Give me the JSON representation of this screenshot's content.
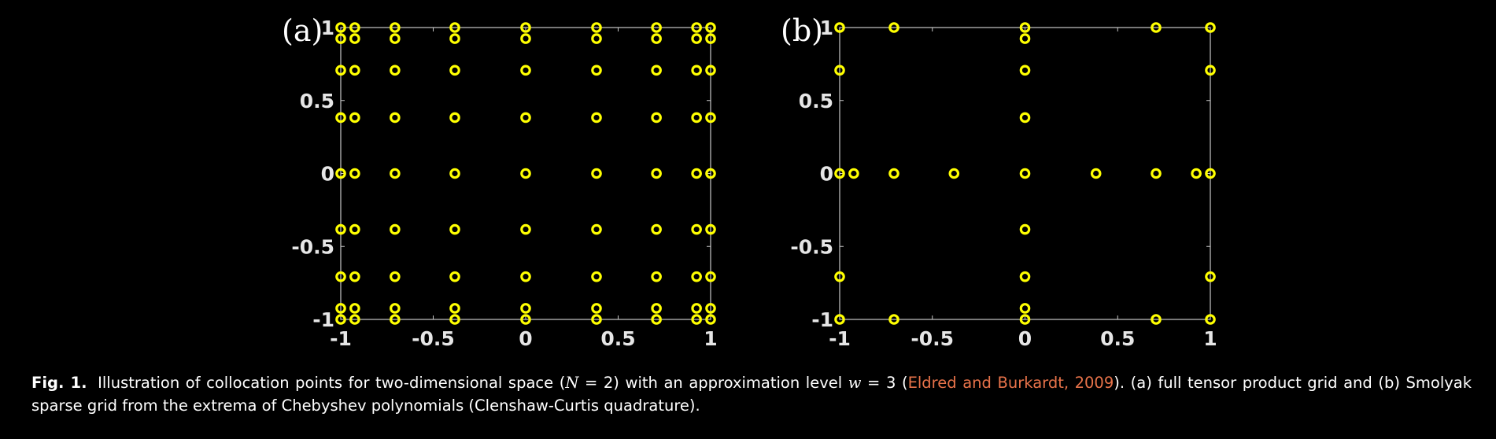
{
  "figure": {
    "caption": {
      "label": "Fig. 1.",
      "text_1": "Illustration of collocation points for two-dimensional space (",
      "var_N": "N",
      "text_2": " = 2) with an approximation level ",
      "var_w": "w",
      "text_3": " = 3 (",
      "citation": "Eldred and Burkardt, 2009",
      "text_4": "). (a) full tensor product grid and (b) Smolyak sparse grid from the extrema of Chebyshev polynomials (Clenshaw-Curtis quadrature)."
    }
  },
  "colors": {
    "background": "#000000",
    "marker": "#ffff00",
    "axes": "#c8c8c8",
    "tick_label": "#e6e6e6",
    "citation": "#e8734a"
  },
  "chart_data": [
    {
      "type": "scatter",
      "panel_label": "(a)",
      "title": "",
      "xlabel": "",
      "ylabel": "",
      "xlim": [
        -1,
        1
      ],
      "ylim": [
        -1,
        1
      ],
      "xticks": [
        -1,
        -0.5,
        0,
        0.5,
        1
      ],
      "yticks": [
        -1,
        -0.5,
        0,
        0.5,
        1
      ],
      "xtick_labels": [
        "-1",
        "-0.5",
        "0",
        "0.5",
        "1"
      ],
      "ytick_labels": [
        "-1",
        "-0.5",
        "0",
        "0.5",
        "1"
      ],
      "grid": false,
      "marker": "circle-open",
      "grid_coordinates": [
        -1,
        -0.924,
        -0.707,
        -0.383,
        0,
        0.383,
        0.707,
        0.924,
        1
      ],
      "points_description": "full tensor product grid: all 81 combinations of grid_coordinates for x and y"
    },
    {
      "type": "scatter",
      "panel_label": "(b)",
      "title": "",
      "xlabel": "",
      "ylabel": "",
      "xlim": [
        -1,
        1
      ],
      "ylim": [
        -1,
        1
      ],
      "xticks": [
        -1,
        -0.5,
        0,
        0.5,
        1
      ],
      "yticks": [
        -1,
        -0.5,
        0,
        0.5,
        1
      ],
      "xtick_labels": [
        "-1",
        "-0.5",
        "0",
        "0.5",
        "1"
      ],
      "ytick_labels": [
        "-1",
        "-0.5",
        "0",
        "0.5",
        "1"
      ],
      "grid": false,
      "marker": "circle-open",
      "points": [
        [
          -1,
          1
        ],
        [
          -0.707,
          1
        ],
        [
          0,
          1
        ],
        [
          0.707,
          1
        ],
        [
          1,
          1
        ],
        [
          0,
          0.924
        ],
        [
          -1,
          0.707
        ],
        [
          0,
          0.707
        ],
        [
          1,
          0.707
        ],
        [
          0,
          0.383
        ],
        [
          -1,
          0
        ],
        [
          -0.924,
          0
        ],
        [
          -0.707,
          0
        ],
        [
          -0.383,
          0
        ],
        [
          0,
          0
        ],
        [
          0.383,
          0
        ],
        [
          0.707,
          0
        ],
        [
          0.924,
          0
        ],
        [
          1,
          0
        ],
        [
          0,
          -0.383
        ],
        [
          -1,
          -0.707
        ],
        [
          0,
          -0.707
        ],
        [
          1,
          -0.707
        ],
        [
          0,
          -0.924
        ],
        [
          -1,
          -1
        ],
        [
          -0.707,
          -1
        ],
        [
          0,
          -1
        ],
        [
          0.707,
          -1
        ],
        [
          1,
          -1
        ]
      ]
    }
  ]
}
